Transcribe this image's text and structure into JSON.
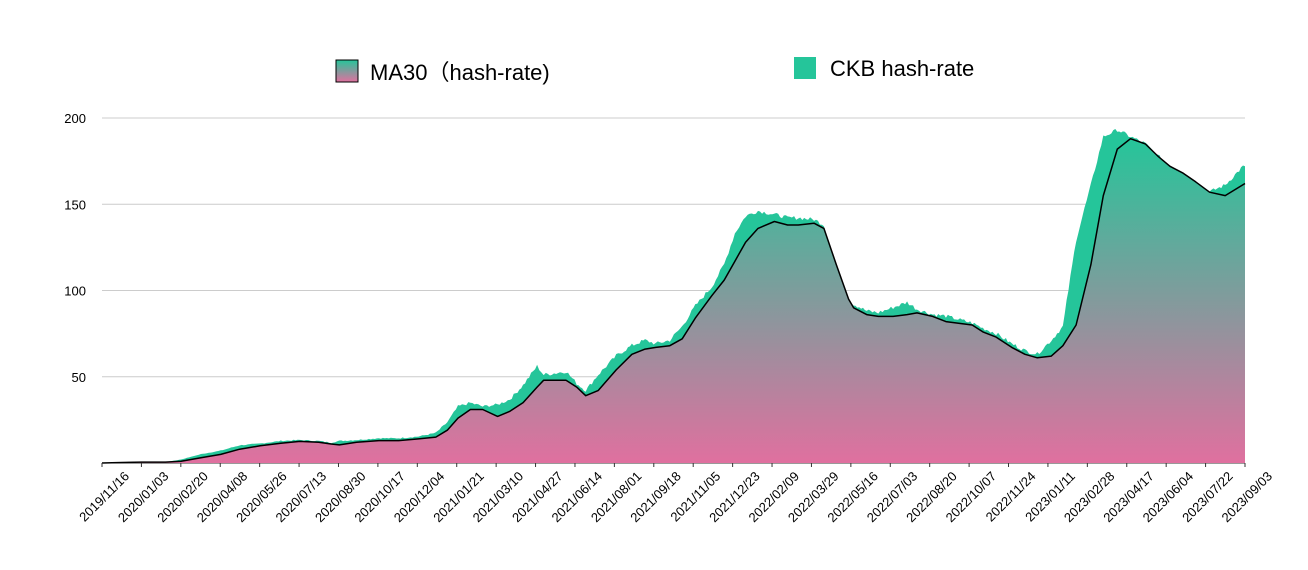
{
  "chart_data": {
    "type": "area",
    "legend_position": "top",
    "grid": true,
    "ylim": [
      0,
      200
    ],
    "yticks": [
      50,
      100,
      150,
      200
    ],
    "xticks": [
      "2019/11/16",
      "2020/01/03",
      "2020/02/20",
      "2020/04/08",
      "2020/05/26",
      "2020/07/13",
      "2020/08/30",
      "2020/10/17",
      "2020/12/04",
      "2021/01/21",
      "2021/03/10",
      "2021/04/27",
      "2021/06/14",
      "2021/08/01",
      "2021/09/18",
      "2021/11/05",
      "2021/12/23",
      "2022/02/09",
      "2022/03/29",
      "2022/05/16",
      "2022/07/03",
      "2022/08/20",
      "2022/10/07",
      "2022/11/24",
      "2023/01/11",
      "2023/02/28",
      "2023/04/17",
      "2023/06/04",
      "2023/07/22",
      "2023/09/03"
    ],
    "x_range": [
      "2019/11/16",
      "2023/09/03"
    ],
    "series": [
      {
        "name": "MA30（hash-rate)",
        "kind": "line",
        "color": "#000000",
        "fill_gradient": [
          "#25c59a",
          "#e0709f"
        ],
        "points": [
          [
            "2019/11/16",
            0
          ],
          [
            "2019/12/10",
            0.3
          ],
          [
            "2020/01/03",
            0.5
          ],
          [
            "2020/02/01",
            0.5
          ],
          [
            "2020/02/20",
            1
          ],
          [
            "2020/03/15",
            3
          ],
          [
            "2020/04/08",
            5
          ],
          [
            "2020/05/01",
            8
          ],
          [
            "2020/05/26",
            10
          ],
          [
            "2020/06/20",
            11.5
          ],
          [
            "2020/07/13",
            12.5
          ],
          [
            "2020/08/05",
            12
          ],
          [
            "2020/08/20",
            11
          ],
          [
            "2020/08/30",
            10.5
          ],
          [
            "2020/09/20",
            12
          ],
          [
            "2020/10/17",
            13
          ],
          [
            "2020/11/10",
            13
          ],
          [
            "2020/12/04",
            14
          ],
          [
            "2020/12/25",
            15
          ],
          [
            "2021/01/08",
            19
          ],
          [
            "2021/01/21",
            26
          ],
          [
            "2021/02/05",
            31
          ],
          [
            "2021/02/20",
            31
          ],
          [
            "2021/03/10",
            27
          ],
          [
            "2021/03/25",
            30
          ],
          [
            "2021/04/10",
            35
          ],
          [
            "2021/04/27",
            44
          ],
          [
            "2021/05/05",
            48
          ],
          [
            "2021/05/20",
            48
          ],
          [
            "2021/06/01",
            48
          ],
          [
            "2021/06/14",
            44
          ],
          [
            "2021/06/25",
            39
          ],
          [
            "2021/07/10",
            42
          ],
          [
            "2021/08/01",
            54
          ],
          [
            "2021/08/20",
            63
          ],
          [
            "2021/09/05",
            66
          ],
          [
            "2021/09/18",
            67
          ],
          [
            "2021/10/05",
            68
          ],
          [
            "2021/10/20",
            72
          ],
          [
            "2021/11/05",
            84
          ],
          [
            "2021/11/25",
            97
          ],
          [
            "2021/12/10",
            106
          ],
          [
            "2021/12/23",
            117
          ],
          [
            "2022/01/05",
            128
          ],
          [
            "2022/01/20",
            136
          ],
          [
            "2022/02/09",
            140
          ],
          [
            "2022/02/25",
            138
          ],
          [
            "2022/03/10",
            138
          ],
          [
            "2022/03/29",
            139
          ],
          [
            "2022/04/10",
            136
          ],
          [
            "2022/04/25",
            115
          ],
          [
            "2022/05/10",
            95
          ],
          [
            "2022/05/16",
            90
          ],
          [
            "2022/06/01",
            86
          ],
          [
            "2022/06/15",
            85
          ],
          [
            "2022/07/03",
            85
          ],
          [
            "2022/07/20",
            86
          ],
          [
            "2022/08/01",
            87
          ],
          [
            "2022/08/20",
            85
          ],
          [
            "2022/09/05",
            82
          ],
          [
            "2022/10/07",
            80
          ],
          [
            "2022/10/20",
            76
          ],
          [
            "2022/11/05",
            73
          ],
          [
            "2022/11/24",
            67
          ],
          [
            "2022/12/10",
            63
          ],
          [
            "2022/12/25",
            61
          ],
          [
            "2023/01/11",
            62
          ],
          [
            "2023/01/25",
            68
          ],
          [
            "2023/02/10",
            80
          ],
          [
            "2023/02/28",
            115
          ],
          [
            "2023/03/15",
            155
          ],
          [
            "2023/04/01",
            182
          ],
          [
            "2023/04/17",
            188
          ],
          [
            "2023/05/05",
            185
          ],
          [
            "2023/05/20",
            178
          ],
          [
            "2023/06/04",
            172
          ],
          [
            "2023/06/20",
            168
          ],
          [
            "2023/07/05",
            163
          ],
          [
            "2023/07/22",
            157
          ],
          [
            "2023/08/10",
            155
          ],
          [
            "2023/09/03",
            162
          ]
        ]
      },
      {
        "name": "CKB hash-rate",
        "kind": "area",
        "color": "#25c59a",
        "points": [
          [
            "2019/11/16",
            0
          ],
          [
            "2019/12/10",
            0.3
          ],
          [
            "2020/01/03",
            0.5
          ],
          [
            "2020/02/01",
            0.5
          ],
          [
            "2020/02/20",
            2
          ],
          [
            "2020/03/15",
            5
          ],
          [
            "2020/04/08",
            7
          ],
          [
            "2020/05/01",
            10
          ],
          [
            "2020/05/26",
            11
          ],
          [
            "2020/06/20",
            12.5
          ],
          [
            "2020/07/13",
            13
          ],
          [
            "2020/08/05",
            12.5
          ],
          [
            "2020/08/20",
            11.5
          ],
          [
            "2020/08/30",
            12.5
          ],
          [
            "2020/09/20",
            13
          ],
          [
            "2020/10/17",
            14
          ],
          [
            "2020/11/10",
            14
          ],
          [
            "2020/12/04",
            15
          ],
          [
            "2020/12/25",
            17
          ],
          [
            "2021/01/08",
            23
          ],
          [
            "2021/01/21",
            32
          ],
          [
            "2021/02/05",
            34
          ],
          [
            "2021/02/20",
            32
          ],
          [
            "2021/03/10",
            33
          ],
          [
            "2021/03/25",
            36
          ],
          [
            "2021/04/10",
            44
          ],
          [
            "2021/04/27",
            55
          ],
          [
            "2021/05/05",
            50
          ],
          [
            "2021/05/20",
            51
          ],
          [
            "2021/06/01",
            52
          ],
          [
            "2021/06/14",
            45
          ],
          [
            "2021/06/25",
            41
          ],
          [
            "2021/07/10",
            50
          ],
          [
            "2021/08/01",
            61
          ],
          [
            "2021/08/20",
            67
          ],
          [
            "2021/09/05",
            70
          ],
          [
            "2021/09/18",
            68
          ],
          [
            "2021/10/05",
            70
          ],
          [
            "2021/10/20",
            78
          ],
          [
            "2021/11/05",
            90
          ],
          [
            "2021/11/25",
            101
          ],
          [
            "2021/12/10",
            114
          ],
          [
            "2021/12/23",
            132
          ],
          [
            "2022/01/05",
            142
          ],
          [
            "2022/01/20",
            145
          ],
          [
            "2022/02/09",
            143
          ],
          [
            "2022/02/25",
            141
          ],
          [
            "2022/03/10",
            141
          ],
          [
            "2022/03/29",
            140
          ],
          [
            "2022/04/10",
            137
          ],
          [
            "2022/04/25",
            112
          ],
          [
            "2022/05/10",
            93
          ],
          [
            "2022/05/16",
            91
          ],
          [
            "2022/06/01",
            87
          ],
          [
            "2022/06/15",
            86
          ],
          [
            "2022/07/03",
            89
          ],
          [
            "2022/07/20",
            92
          ],
          [
            "2022/08/01",
            88
          ],
          [
            "2022/08/20",
            85
          ],
          [
            "2022/09/05",
            84
          ],
          [
            "2022/10/07",
            80
          ],
          [
            "2022/10/20",
            77
          ],
          [
            "2022/11/05",
            74
          ],
          [
            "2022/11/24",
            68
          ],
          [
            "2022/12/10",
            64
          ],
          [
            "2022/12/25",
            62
          ],
          [
            "2023/01/11",
            70
          ],
          [
            "2023/01/25",
            78
          ],
          [
            "2023/02/10",
            128
          ],
          [
            "2023/02/28",
            160
          ],
          [
            "2023/03/15",
            188
          ],
          [
            "2023/04/01",
            192
          ],
          [
            "2023/04/17",
            188
          ],
          [
            "2023/05/05",
            184
          ],
          [
            "2023/05/20",
            177
          ],
          [
            "2023/06/04",
            171
          ],
          [
            "2023/06/20",
            166
          ],
          [
            "2023/07/05",
            160
          ],
          [
            "2023/07/22",
            156
          ],
          [
            "2023/08/10",
            160
          ],
          [
            "2023/09/03",
            172
          ]
        ]
      }
    ]
  }
}
